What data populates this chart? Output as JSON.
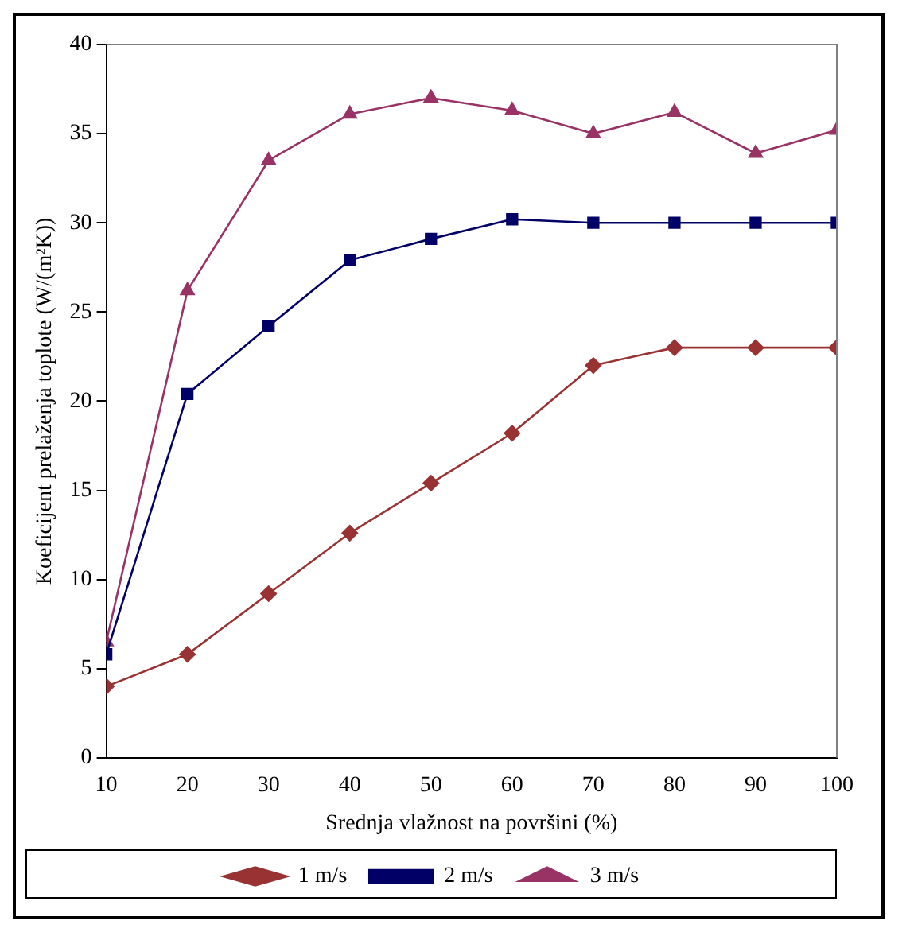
{
  "chart_data": {
    "type": "line",
    "xlabel": "Srednja vlažnost na površini (%)",
    "ylabel": "Koeficijent prelaženja toplote (W/(m²K))",
    "x": [
      10,
      20,
      30,
      40,
      50,
      60,
      70,
      80,
      90,
      100
    ],
    "xlim": [
      10,
      100
    ],
    "xticks": [
      10,
      20,
      30,
      40,
      50,
      60,
      70,
      80,
      90,
      100
    ],
    "ylim": [
      0,
      40
    ],
    "yticks": [
      0,
      5,
      10,
      15,
      20,
      25,
      30,
      35,
      40
    ],
    "grid": false,
    "legend": "bottom",
    "line_style": "solid",
    "series": [
      {
        "name": "1 m/s",
        "color": "#993333",
        "marker": "diamond",
        "values": [
          4,
          5.8,
          9.2,
          12.6,
          15.4,
          18.2,
          22,
          23,
          23,
          23
        ]
      },
      {
        "name": "2 m/s",
        "color": "#000066",
        "marker": "square",
        "values": [
          5.8,
          20.4,
          24.2,
          27.9,
          29.1,
          30.2,
          30,
          30,
          30,
          30
        ]
      },
      {
        "name": "3 m/s",
        "color": "#993366",
        "marker": "triangle",
        "values": [
          6.5,
          26.2,
          33.5,
          36.1,
          37,
          36.3,
          35,
          36.2,
          33.9,
          35.2
        ]
      }
    ]
  }
}
